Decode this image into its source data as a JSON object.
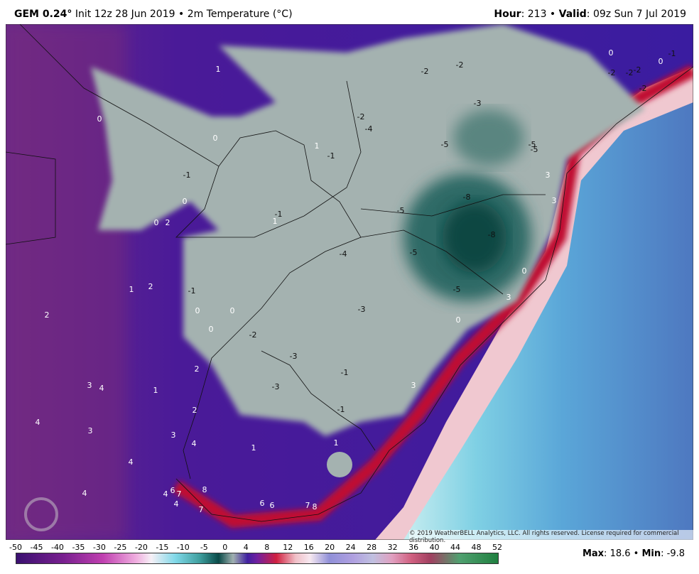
{
  "header": {
    "model": "GEM 0.24°",
    "init": "Init 12z 28 Jun 2019",
    "field": "2m Temperature (°C)",
    "hour_label": "Hour",
    "hour": "213",
    "valid_label": "Valid",
    "valid": "09z Sun 7 Jul 2019"
  },
  "map_labels": [
    "1",
    "0",
    "0",
    "-1",
    "0",
    "0",
    "2",
    "-1",
    "1",
    "1",
    "2",
    "-1",
    "0",
    "0",
    "0",
    "2",
    "-2",
    "-3",
    "-1",
    "-3",
    "2",
    "3",
    "4",
    "1",
    "2",
    "4",
    "3",
    "3",
    "4",
    "1",
    "-1",
    "1",
    "4",
    "4",
    "8",
    "4",
    "6",
    "7",
    "4",
    "7",
    "6",
    "6",
    "7",
    "8",
    "-2",
    "-2",
    "-3",
    "-2",
    "-4",
    "-5",
    "-5",
    "-5",
    "-8",
    "-5",
    "-8",
    "-5",
    "-4",
    "-5",
    "-3",
    "0",
    "3",
    "3",
    "3",
    "0",
    "3",
    "0",
    "-1",
    "0",
    "-2",
    "-2",
    "-2",
    "-2",
    "-1",
    "1"
  ],
  "copyright": "© 2019 WeatherBELL Analytics, LLC. All rights reserved. License required for commercial distribution.",
  "colorbar_labels": [
    -50,
    -45,
    -40,
    -35,
    -30,
    -25,
    -20,
    -15,
    -10,
    -5,
    0,
    4,
    8,
    12,
    16,
    20,
    24,
    28,
    32,
    36,
    40,
    44,
    48,
    52
  ],
  "footer": {
    "max_label": "Max",
    "max": "18.6",
    "min_label": "Min",
    "min": "-9.8"
  }
}
